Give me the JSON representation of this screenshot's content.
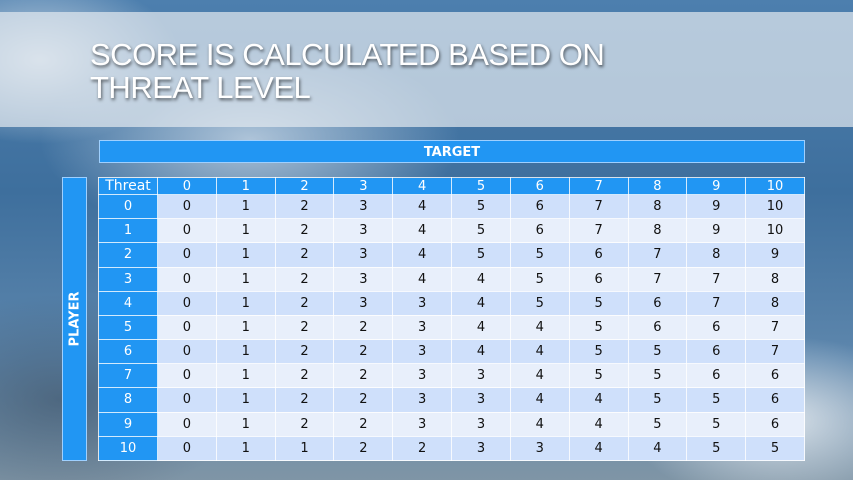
{
  "title": "SCORE IS CALCULATED BASED ON THREAT LEVEL",
  "target_label": "TARGET",
  "player_label": "PLAYER",
  "table": {
    "corner": "Threat",
    "columns": [
      "0",
      "1",
      "2",
      "3",
      "4",
      "5",
      "6",
      "7",
      "8",
      "9",
      "10"
    ],
    "rows": [
      {
        "label": "0",
        "values": [
          0,
          1,
          2,
          3,
          4,
          5,
          6,
          7,
          8,
          9,
          10
        ]
      },
      {
        "label": "1",
        "values": [
          0,
          1,
          2,
          3,
          4,
          5,
          6,
          7,
          8,
          9,
          10
        ]
      },
      {
        "label": "2",
        "values": [
          0,
          1,
          2,
          3,
          4,
          5,
          5,
          6,
          7,
          8,
          9
        ]
      },
      {
        "label": "3",
        "values": [
          0,
          1,
          2,
          3,
          4,
          4,
          5,
          6,
          7,
          7,
          8
        ]
      },
      {
        "label": "4",
        "values": [
          0,
          1,
          2,
          3,
          3,
          4,
          5,
          5,
          6,
          7,
          8
        ]
      },
      {
        "label": "5",
        "values": [
          0,
          1,
          2,
          2,
          3,
          4,
          4,
          5,
          6,
          6,
          7
        ]
      },
      {
        "label": "6",
        "values": [
          0,
          1,
          2,
          2,
          3,
          4,
          4,
          5,
          5,
          6,
          7
        ]
      },
      {
        "label": "7",
        "values": [
          0,
          1,
          2,
          2,
          3,
          3,
          4,
          5,
          5,
          6,
          6
        ]
      },
      {
        "label": "8",
        "values": [
          0,
          1,
          2,
          2,
          3,
          3,
          4,
          4,
          5,
          5,
          6
        ]
      },
      {
        "label": "9",
        "values": [
          0,
          1,
          2,
          2,
          3,
          3,
          4,
          4,
          5,
          5,
          6
        ]
      },
      {
        "label": "10",
        "values": [
          0,
          1,
          1,
          2,
          2,
          3,
          3,
          4,
          4,
          5,
          5
        ]
      }
    ]
  },
  "colors": {
    "header": "#2196f3",
    "row_odd": "#cfe0fb",
    "row_even": "#e8effb"
  }
}
